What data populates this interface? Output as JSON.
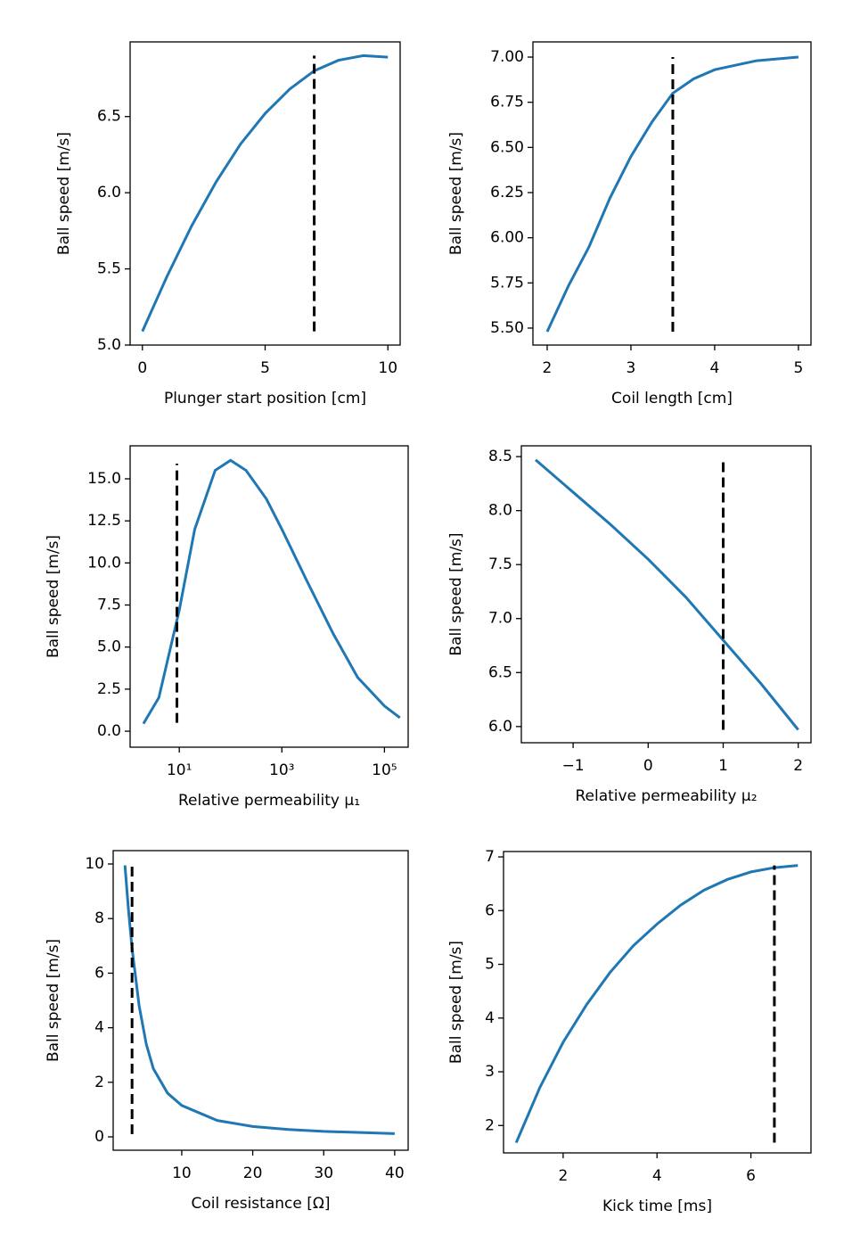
{
  "chart_data": [
    {
      "type": "line",
      "xlabel": "Plunger start position [cm]",
      "ylabel": "Ball speed [m/s]",
      "x": [
        0,
        1,
        2,
        3,
        4,
        5,
        6,
        7,
        8,
        9,
        10
      ],
      "series": [
        {
          "color": "#1f77b4",
          "values": [
            5.09,
            5.45,
            5.78,
            6.07,
            6.32,
            6.52,
            6.68,
            6.8,
            6.87,
            6.9,
            6.89
          ]
        }
      ],
      "vline": {
        "x": 7,
        "y": [
          5.09,
          6.9
        ],
        "color": "#000000",
        "dashed": true
      },
      "xlim": [
        -0.5,
        10.5
      ],
      "ylim": [
        5.0,
        6.99
      ],
      "xticks": [
        0,
        5,
        10
      ],
      "yticks": [
        {
          "value": 5.0,
          "label": "5.0"
        },
        5.5,
        {
          "value": 6.0,
          "label": "6.0"
        },
        6.5
      ]
    },
    {
      "type": "line",
      "xlabel": "Coil length [cm]",
      "ylabel": "Ball speed [m/s]",
      "x": [
        2,
        2.25,
        2.5,
        2.75,
        3,
        3.25,
        3.5,
        3.75,
        4,
        4.5,
        5
      ],
      "series": [
        {
          "color": "#1f77b4",
          "values": [
            5.48,
            5.73,
            5.95,
            6.22,
            6.45,
            6.64,
            6.8,
            6.88,
            6.93,
            6.98,
            7.0
          ]
        }
      ],
      "vline": {
        "x": 3.5,
        "y": [
          5.48,
          7.0
        ],
        "color": "#000000",
        "dashed": true
      },
      "xlim": [
        1.83,
        5.15
      ],
      "ylim": [
        5.406,
        7.084
      ],
      "xticks": [
        2,
        3,
        4,
        5
      ],
      "yticks": [
        {
          "value": 5.5,
          "label": "5.50"
        },
        5.75,
        {
          "value": 6.0,
          "label": "6.00"
        },
        6.25,
        {
          "value": 6.5,
          "label": "6.50"
        },
        6.75,
        {
          "value": 7.0,
          "label": "7.00"
        }
      ]
    },
    {
      "type": "line",
      "xlabel": "Relative permeability μ₁",
      "ylabel": "Ball speed [m/s]",
      "xscale": "log",
      "x": [
        2,
        4,
        6,
        10,
        20,
        50,
        100,
        200,
        500,
        1000,
        3000,
        10000,
        30000,
        100000,
        200000
      ],
      "series": [
        {
          "color": "#1f77b4",
          "values": [
            0.45,
            2.0,
            4.3,
            7.2,
            12.0,
            15.5,
            16.1,
            15.5,
            13.8,
            12.0,
            9.0,
            5.8,
            3.2,
            1.5,
            0.8
          ]
        }
      ],
      "vline": {
        "x": 9,
        "y": [
          0.5,
          15.9
        ],
        "color": "#000000",
        "dashed": true
      },
      "xlim": [
        1.1,
        290000
      ],
      "ylim": [
        -0.95,
        16.96
      ],
      "xticks": [
        {
          "value": 10,
          "label": "10¹"
        },
        {
          "value": 1000,
          "label": "10³"
        },
        {
          "value": 100000,
          "label": "10⁵"
        }
      ],
      "yticks": [
        {
          "value": 0,
          "label": "0.0"
        },
        2.5,
        {
          "value": 5,
          "label": "5.0"
        },
        7.5,
        {
          "value": 10,
          "label": "10.0"
        },
        12.5,
        {
          "value": 15,
          "label": "15.0"
        }
      ]
    },
    {
      "type": "line",
      "xlabel": "Relative permeability μ₂",
      "ylabel": "Ball speed [m/s]",
      "x": [
        -1.5,
        -1,
        -0.5,
        0,
        0.5,
        1,
        1.5,
        2
      ],
      "series": [
        {
          "color": "#1f77b4",
          "values": [
            8.47,
            8.17,
            7.87,
            7.55,
            7.2,
            6.8,
            6.4,
            5.97
          ]
        }
      ],
      "vline": {
        "x": 1,
        "y": [
          5.97,
          8.47
        ],
        "color": "#000000",
        "dashed": true
      },
      "xlim": [
        -1.69,
        2.17
      ],
      "ylim": [
        5.85,
        8.6
      ],
      "xticks": [
        {
          "value": -1,
          "label": "−1"
        },
        0,
        1,
        2
      ],
      "yticks": [
        {
          "value": 6,
          "label": "6.0"
        },
        6.5,
        {
          "value": 7,
          "label": "7.0"
        },
        7.5,
        {
          "value": 8,
          "label": "8.0"
        },
        8.5
      ]
    },
    {
      "type": "line",
      "xlabel": "Coil resistance [Ω]",
      "ylabel": "Ball speed [m/s]",
      "x": [
        2,
        2.5,
        3,
        4,
        5,
        6,
        8,
        10,
        15,
        20,
        25,
        30,
        40
      ],
      "series": [
        {
          "color": "#1f77b4",
          "values": [
            9.95,
            8.3,
            6.9,
            4.8,
            3.4,
            2.5,
            1.6,
            1.15,
            0.6,
            0.38,
            0.27,
            0.2,
            0.12
          ]
        }
      ],
      "vline": {
        "x": 3,
        "y": [
          0.1,
          9.95
        ],
        "color": "#000000",
        "dashed": true
      },
      "xlim": [
        0.34,
        41.9
      ],
      "ylim": [
        -0.49,
        10.49
      ],
      "xticks": [
        10,
        20,
        30,
        40
      ],
      "yticks": [
        0,
        2,
        4,
        6,
        8,
        10
      ]
    },
    {
      "type": "line",
      "xlabel": "Kick time [ms]",
      "ylabel": "Ball speed [m/s]",
      "x": [
        1,
        1.5,
        2,
        2.5,
        3,
        3.5,
        4,
        4.5,
        5,
        5.5,
        6,
        6.5,
        7
      ],
      "series": [
        {
          "color": "#1f77b4",
          "values": [
            1.68,
            2.7,
            3.55,
            4.25,
            4.85,
            5.35,
            5.75,
            6.1,
            6.38,
            6.58,
            6.72,
            6.8,
            6.84
          ]
        }
      ],
      "vline": {
        "x": 6.5,
        "y": [
          1.68,
          6.84
        ],
        "color": "#000000",
        "dashed": true
      },
      "xlim": [
        0.73,
        7.28
      ],
      "ylim": [
        1.49,
        7.1
      ],
      "xticks": [
        2,
        4,
        6
      ],
      "yticks": [
        2,
        3,
        4,
        5,
        6,
        7
      ]
    }
  ]
}
